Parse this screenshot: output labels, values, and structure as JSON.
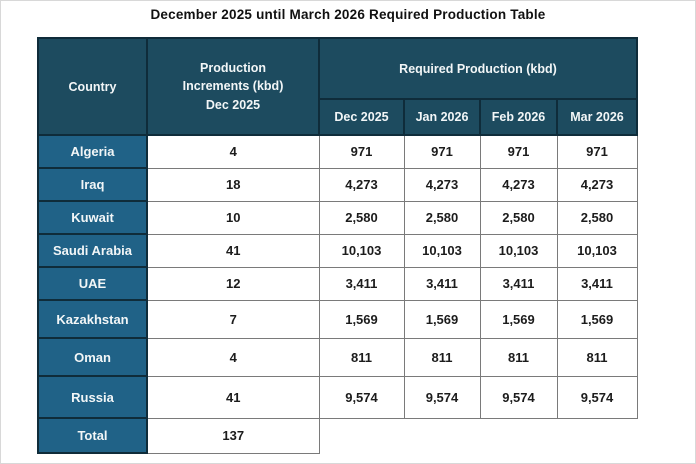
{
  "title": "December 2025 until March 2026 Required Production Table",
  "colors": {
    "header_bg": "#1d4b5f",
    "row_header_bg": "#206287",
    "grid_dark": "#0f2c3a",
    "grid_light": "#7a7a7a",
    "header_text": "#f2f6f7",
    "cell_text": "#1c1c1c"
  },
  "chart_data": {
    "type": "table",
    "title": "December 2025 until March 2026 Required Production Table",
    "corner_header": "Country",
    "increments_header": "Production\nIncrements (kbd)\nDec 2025",
    "group_header": "Required Production (kbd)",
    "month_headers": [
      "Dec 2025",
      "Jan 2026",
      "Feb 2026",
      "Mar 2026"
    ],
    "rows": [
      {
        "country": "Algeria",
        "increment": "4",
        "values": [
          "971",
          "971",
          "971",
          "971"
        ]
      },
      {
        "country": "Iraq",
        "increment": "18",
        "values": [
          "4,273",
          "4,273",
          "4,273",
          "4,273"
        ]
      },
      {
        "country": "Kuwait",
        "increment": "10",
        "values": [
          "2,580",
          "2,580",
          "2,580",
          "2,580"
        ]
      },
      {
        "country": "Saudi Arabia",
        "increment": "41",
        "values": [
          "10,103",
          "10,103",
          "10,103",
          "10,103"
        ]
      },
      {
        "country": "UAE",
        "increment": "12",
        "values": [
          "3,411",
          "3,411",
          "3,411",
          "3,411"
        ]
      },
      {
        "country": "Kazakhstan",
        "increment": "7",
        "values": [
          "1,569",
          "1,569",
          "1,569",
          "1,569"
        ]
      },
      {
        "country": "Oman",
        "increment": "4",
        "values": [
          "811",
          "811",
          "811",
          "811"
        ]
      },
      {
        "country": "Russia",
        "increment": "41",
        "values": [
          "9,574",
          "9,574",
          "9,574",
          "9,574"
        ]
      }
    ],
    "total_row": {
      "label": "Total",
      "increment": "137"
    }
  }
}
